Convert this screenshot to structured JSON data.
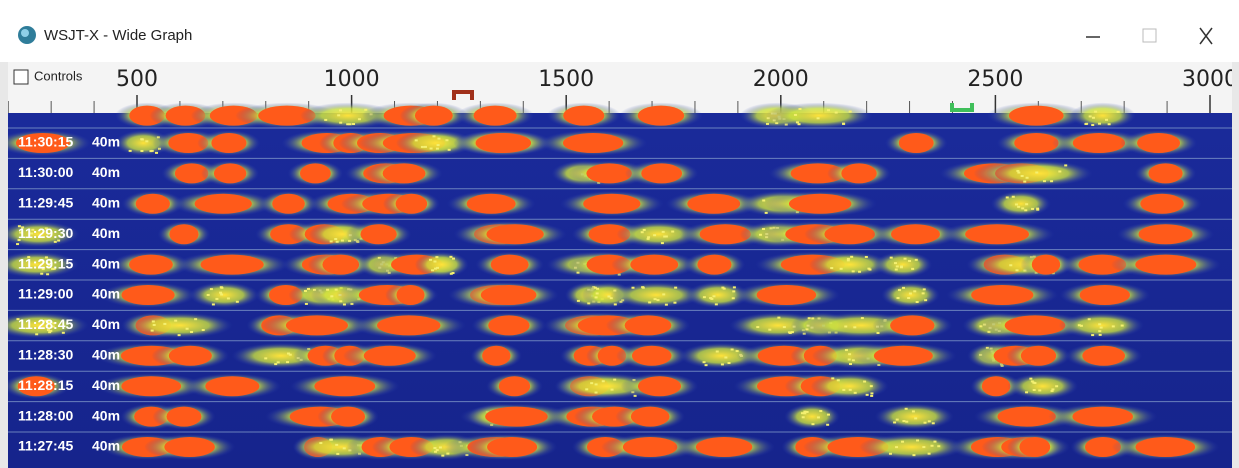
{
  "window": {
    "title": "WSJT-X - Wide Graph"
  },
  "controls": {
    "label": "Controls",
    "checked": false
  },
  "scale": {
    "ticks": [
      500,
      1000,
      1500,
      2000,
      2500,
      3000
    ]
  },
  "waterfall": {
    "rows": [
      {
        "time": "11:30:15",
        "band": "40m"
      },
      {
        "time": "11:30:00",
        "band": "40m"
      },
      {
        "time": "11:29:45",
        "band": "40m"
      },
      {
        "time": "11:29:30",
        "band": "40m"
      },
      {
        "time": "11:29:15",
        "band": "40m"
      },
      {
        "time": "11:29:00",
        "band": "40m"
      },
      {
        "time": "11:28:45",
        "band": "40m"
      },
      {
        "time": "11:28:30",
        "band": "40m"
      },
      {
        "time": "11:28:15",
        "band": "40m"
      },
      {
        "time": "11:28:00",
        "band": "40m"
      },
      {
        "time": "11:27:45",
        "band": "40m"
      }
    ]
  }
}
